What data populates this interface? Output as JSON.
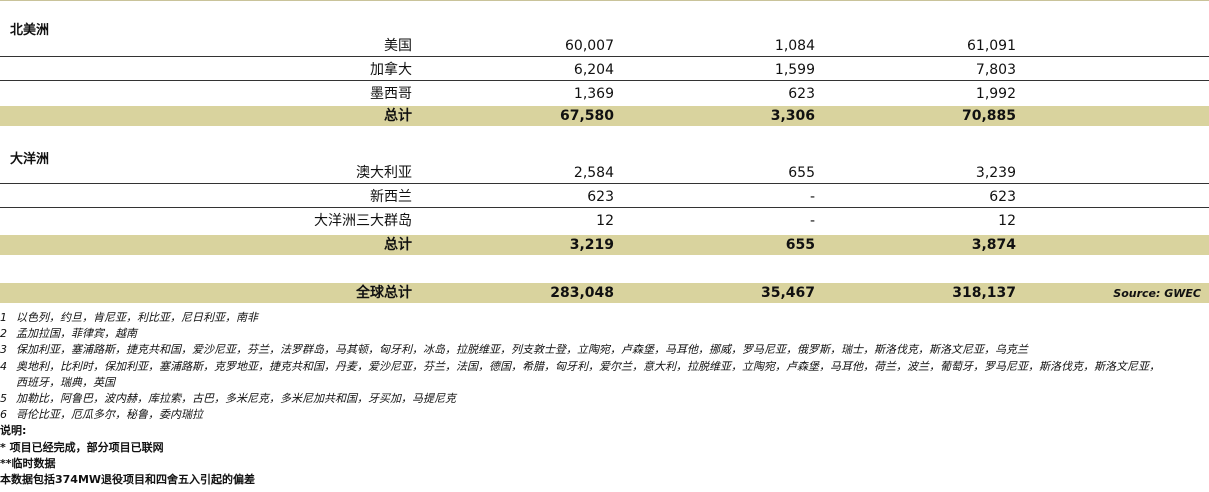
{
  "sections": [
    {
      "title": "北美洲",
      "rows": [
        {
          "name": "美国",
          "a": "60,007",
          "b": "1,084",
          "c": "61,091"
        },
        {
          "name": "加拿大",
          "a": "6,204",
          "b": "1,599",
          "c": "7,803"
        },
        {
          "name": "墨西哥",
          "a": "1,369",
          "b": "623",
          "c": "1,992"
        }
      ],
      "total": {
        "name": "总计",
        "a": "67,580",
        "b": "3,306",
        "c": "70,885"
      }
    },
    {
      "title": "大洋洲",
      "rows": [
        {
          "name": "澳大利亚",
          "a": "2,584",
          "b": "655",
          "c": "3,239"
        },
        {
          "name": "新西兰",
          "a": "623",
          "b": "-",
          "c": "623"
        },
        {
          "name": "大洋洲三大群岛",
          "a": "12",
          "b": "-",
          "c": "12"
        }
      ],
      "total": {
        "name": "总计",
        "a": "3,219",
        "b": "655",
        "c": "3,874"
      }
    }
  ],
  "global_total": {
    "name": "全球总计",
    "a": "283,048",
    "b": "35,467",
    "c": "318,137"
  },
  "source": "Source: GWEC",
  "footnotes": [
    {
      "num": "1",
      "text": "以色列，约旦，肯尼亚，利比亚，尼日利亚，南非"
    },
    {
      "num": "2",
      "text": "孟加拉国，菲律宾，越南"
    },
    {
      "num": "3",
      "text": "保加利亚，塞浦路斯，捷克共和国，爱沙尼亚，芬兰，法罗群岛，马其顿，匈牙利，冰岛，拉脱维亚，列支敦士登，立陶宛，卢森堡，马耳他，挪威，罗马尼亚，俄罗斯，瑞士，斯洛伐克，斯洛文尼亚，乌克兰"
    },
    {
      "num": "4",
      "text": "奥地利，比利时，保加利亚，塞浦路斯，克罗地亚，捷克共和国，丹麦，爱沙尼亚，芬兰，法国，德国，希腊，匈牙利，爱尔兰，意大利，拉脱维亚，立陶宛，卢森堡，马耳他，荷兰，波兰，葡萄牙，罗马尼亚，斯洛伐克，斯洛文尼亚，",
      "cont": "西班牙，瑞典，英国"
    },
    {
      "num": "5",
      "text": "加勒比，阿鲁巴，波内赫，库拉索，古巴，多米尼克，多米尼加共和国，牙买加，马提尼克"
    },
    {
      "num": "6",
      "text": "哥伦比亚，厄瓜多尔，秘鲁，委内瑞拉"
    }
  ],
  "notes": {
    "heading": "说明:",
    "lines": [
      "*   项目已经完成，部分项目已联网",
      "**临时数据",
      "本数据包括374MW退役项目和四舍五入引起的偏差"
    ]
  }
}
